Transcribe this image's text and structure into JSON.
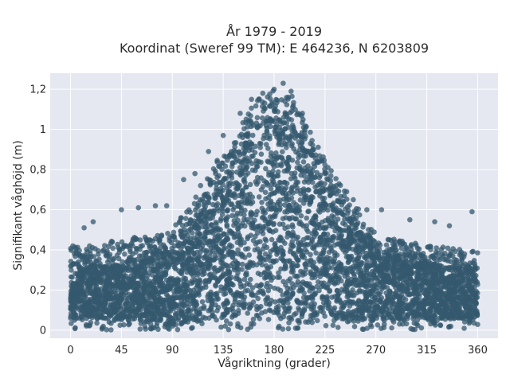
{
  "chart_data": {
    "type": "scatter",
    "title_line1": "År 1979 - 2019",
    "title_line2": "Koordinat (Sweref 99 TM): E 464236, N 6203809",
    "xlabel": "Vågriktning (grader)",
    "ylabel": "Signifikant våghöjd (m)",
    "xlim": [
      -18,
      378
    ],
    "ylim": [
      -0.04,
      1.28
    ],
    "x_ticks": [
      0,
      45,
      90,
      135,
      180,
      225,
      270,
      315,
      360
    ],
    "x_tick_labels": [
      "0",
      "45",
      "90",
      "135",
      "180",
      "225",
      "270",
      "315",
      "360"
    ],
    "y_ticks": [
      0,
      0.2,
      0.4,
      0.6,
      0.8,
      1.0,
      1.2
    ],
    "y_tick_labels": [
      "0",
      "0,2",
      "0,4",
      "0,6",
      "0,8",
      "1",
      "1,2"
    ],
    "grid": true,
    "marker_color": "#34586e",
    "plot_background": "#e5e8f0",
    "envelope": {
      "direction": [
        0,
        45,
        90,
        135,
        165,
        180,
        195,
        225,
        270,
        315,
        360
      ],
      "height_upper": [
        0.42,
        0.45,
        0.5,
        0.9,
        1.15,
        1.2,
        1.18,
        0.85,
        0.48,
        0.42,
        0.4
      ],
      "height_core": [
        0.3,
        0.32,
        0.38,
        0.72,
        1.0,
        1.05,
        1.0,
        0.7,
        0.38,
        0.32,
        0.3
      ],
      "height_lower": [
        0.06,
        0.05,
        0.03,
        0.06,
        0.08,
        0.08,
        0.07,
        0.06,
        0.05,
        0.05,
        0.06
      ]
    },
    "sample_points": [
      {
        "x": 5,
        "y": 0.39
      },
      {
        "x": 12,
        "y": 0.51
      },
      {
        "x": 20,
        "y": 0.54
      },
      {
        "x": 45,
        "y": 0.6
      },
      {
        "x": 60,
        "y": 0.61
      },
      {
        "x": 75,
        "y": 0.62
      },
      {
        "x": 85,
        "y": 0.62
      },
      {
        "x": 100,
        "y": 0.75
      },
      {
        "x": 110,
        "y": 0.78
      },
      {
        "x": 122,
        "y": 0.89
      },
      {
        "x": 135,
        "y": 0.97
      },
      {
        "x": 150,
        "y": 1.08
      },
      {
        "x": 160,
        "y": 1.15
      },
      {
        "x": 170,
        "y": 1.18
      },
      {
        "x": 180,
        "y": 1.2
      },
      {
        "x": 188,
        "y": 1.23
      },
      {
        "x": 195,
        "y": 1.19
      },
      {
        "x": 205,
        "y": 1.08
      },
      {
        "x": 215,
        "y": 0.9
      },
      {
        "x": 225,
        "y": 0.78
      },
      {
        "x": 235,
        "y": 0.7
      },
      {
        "x": 250,
        "y": 0.65
      },
      {
        "x": 262,
        "y": 0.6
      },
      {
        "x": 275,
        "y": 0.6
      },
      {
        "x": 300,
        "y": 0.55
      },
      {
        "x": 322,
        "y": 0.54
      },
      {
        "x": 335,
        "y": 0.52
      },
      {
        "x": 355,
        "y": 0.59
      }
    ]
  }
}
